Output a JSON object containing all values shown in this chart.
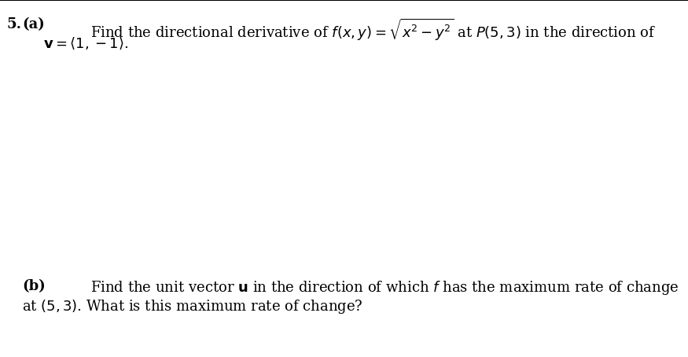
{
  "background_color": "#ffffff",
  "top_border_color": "#000000",
  "number": "5.",
  "part_a_label": "(a)",
  "part_a_line1": "Find the directional derivative of $f(x, y) = \\sqrt{x^2 - y^2}$ at $P(5, 3)$ in the direction of",
  "part_a_line2": "$\\mathbf{v} = \\langle 1, -1 \\rangle$.",
  "part_b_label": "(b)",
  "part_b_line1": "Find the unit vector $\\mathbf{u}$ in the direction of which $f$ has the maximum rate of change",
  "part_b_line2": "at $(5, 3)$. What is this maximum rate of change?",
  "font_size_main": 13,
  "font_size_number": 13,
  "text_color": "#000000"
}
